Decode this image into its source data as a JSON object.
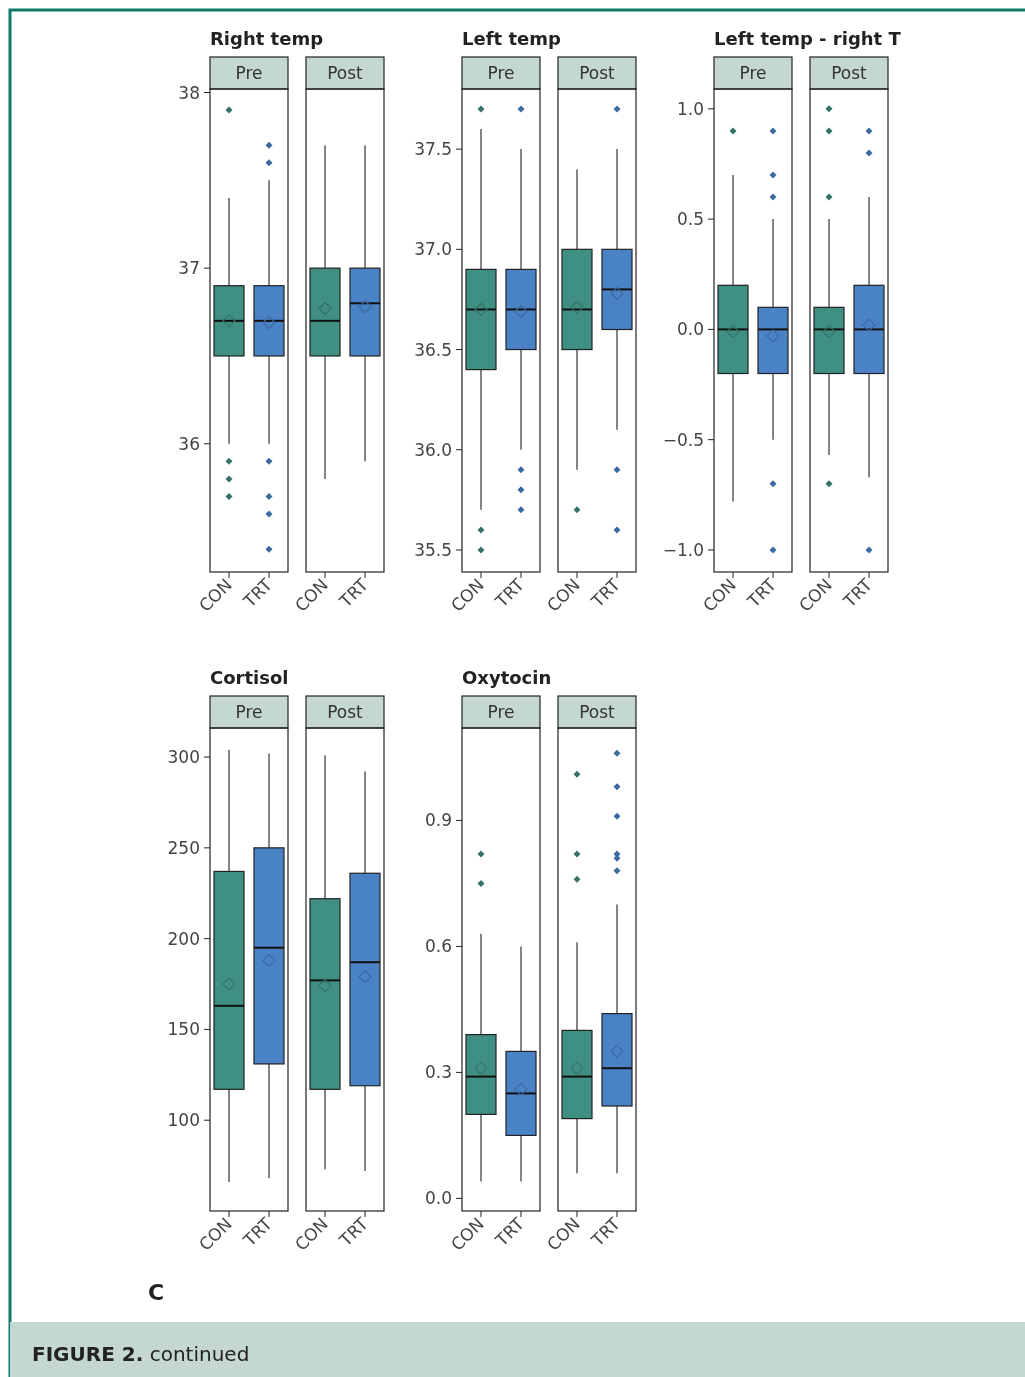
{
  "chart_data": [
    {
      "type": "box",
      "title": "Right temp",
      "subtitle": "Pre",
      "categories": [
        "CON",
        "TRT"
      ],
      "colors": [
        "#408f83",
        "#4a82c6"
      ],
      "ylim": [
        35.27,
        38.02
      ],
      "yticks": [
        36,
        37,
        38
      ],
      "marker": "diamond",
      "boxes": [
        {
          "low": 36.0,
          "q1": 36.5,
          "median": 36.7,
          "q3": 36.9,
          "high": 37.4,
          "mean": 36.7,
          "outliers": [
            37.9,
            35.9,
            35.8,
            35.7
          ]
        },
        {
          "low": 36.0,
          "q1": 36.5,
          "median": 36.7,
          "q3": 36.9,
          "high": 37.5,
          "mean": 36.69,
          "outliers": [
            37.7,
            37.6,
            35.9,
            35.7,
            35.6,
            35.4
          ]
        }
      ]
    },
    {
      "type": "box",
      "subtitle": "Post",
      "categories": [
        "CON",
        "TRT"
      ],
      "colors": [
        "#408f83",
        "#4a82c6"
      ],
      "ylim": [
        35.27,
        38.02
      ],
      "tick_labels": "x",
      "marker": "diamond",
      "boxes": [
        {
          "low": 35.8,
          "q1": 36.5,
          "median": 36.7,
          "q3": 37.0,
          "high": 37.7,
          "mean": 36.77
        },
        {
          "low": 35.9,
          "q1": 36.5,
          "median": 36.8,
          "q3": 37.0,
          "high": 37.7,
          "mean": 36.78
        }
      ]
    },
    {
      "type": "box",
      "title": "Left temp",
      "subtitle": "Pre",
      "categories": [
        "CON",
        "TRT"
      ],
      "colors": [
        "#408f83",
        "#4a82c6"
      ],
      "ylim": [
        35.39,
        37.8
      ],
      "yticks": [
        {
          "value": 35.5,
          "label": "35.5"
        },
        {
          "value": 36,
          "label": "36.0"
        },
        {
          "value": 36.5,
          "label": "36.5"
        },
        {
          "value": 37,
          "label": "37.0"
        },
        {
          "value": 37.5,
          "label": "37.5"
        }
      ],
      "marker": "diamond",
      "boxes": [
        {
          "low": 35.7,
          "q1": 36.4,
          "median": 36.7,
          "q3": 36.9,
          "high": 37.6,
          "mean": 36.7,
          "outliers": [
            37.7,
            35.6,
            35.5
          ]
        },
        {
          "low": 36.0,
          "q1": 36.5,
          "median": 36.7,
          "q3": 36.9,
          "high": 37.5,
          "mean": 36.69,
          "outliers": [
            37.7,
            35.9,
            35.8,
            35.7
          ]
        }
      ]
    },
    {
      "type": "box",
      "subtitle": "Post",
      "categories": [
        "CON",
        "TRT"
      ],
      "colors": [
        "#408f83",
        "#4a82c6"
      ],
      "ylim": [
        35.39,
        37.8
      ],
      "tick_labels": "x",
      "marker": "diamond",
      "boxes": [
        {
          "low": 35.9,
          "q1": 36.5,
          "median": 36.7,
          "q3": 37.0,
          "high": 37.4,
          "mean": 36.71,
          "outliers": [
            35.7
          ]
        },
        {
          "low": 36.1,
          "q1": 36.6,
          "median": 36.8,
          "q3": 37.0,
          "high": 37.5,
          "mean": 36.78,
          "outliers": [
            37.7,
            35.9,
            35.6
          ]
        }
      ]
    },
    {
      "type": "box",
      "title": "Left temp - right T",
      "subtitle": "Pre",
      "categories": [
        "CON",
        "TRT"
      ],
      "colors": [
        "#408f83",
        "#4a82c6"
      ],
      "ylim": [
        -1.1,
        1.09
      ],
      "yticks": [
        {
          "value": -1,
          "label": "−1.0"
        },
        {
          "value": -0.5,
          "label": "−0.5"
        },
        {
          "value": 0,
          "label": "0.0"
        },
        {
          "value": 0.5,
          "label": "0.5"
        },
        {
          "value": 1,
          "label": "1.0"
        }
      ],
      "marker": "diamond",
      "boxes": [
        {
          "low": -0.78,
          "q1": -0.2,
          "median": 0.0,
          "q3": 0.2,
          "high": 0.7,
          "mean": -0.01,
          "outliers": [
            0.9
          ]
        },
        {
          "low": -0.5,
          "q1": -0.2,
          "median": 0.0,
          "q3": 0.1,
          "high": 0.5,
          "mean": -0.03,
          "outliers": [
            0.9,
            0.7,
            0.6,
            -0.7,
            -1.0
          ]
        }
      ]
    },
    {
      "type": "box",
      "subtitle": "Post",
      "categories": [
        "CON",
        "TRT"
      ],
      "colors": [
        "#408f83",
        "#4a82c6"
      ],
      "ylim": [
        -1.1,
        1.09
      ],
      "tick_labels": "x",
      "marker": "diamond",
      "boxes": [
        {
          "low": -0.57,
          "q1": -0.2,
          "median": 0.0,
          "q3": 0.1,
          "high": 0.5,
          "mean": -0.01,
          "outliers": [
            1.0,
            0.9,
            0.6,
            -0.7
          ]
        },
        {
          "low": -0.67,
          "q1": -0.2,
          "median": 0.0,
          "q3": 0.2,
          "high": 0.6,
          "mean": 0.02,
          "outliers": [
            0.9,
            0.8,
            -1.0
          ]
        }
      ]
    },
    {
      "type": "box",
      "title": "Cortisol",
      "subtitle": "Pre",
      "categories": [
        "CON",
        "TRT"
      ],
      "colors": [
        "#408f83",
        "#4a82c6"
      ],
      "ylim": [
        50,
        316
      ],
      "yticks": [
        100,
        150,
        200,
        250,
        300
      ],
      "marker": "diamond",
      "boxes": [
        {
          "low": 66,
          "q1": 117,
          "median": 163,
          "q3": 237,
          "high": 304,
          "mean": 175
        },
        {
          "low": 68,
          "q1": 131,
          "median": 195,
          "q3": 250,
          "high": 302,
          "mean": 188
        }
      ]
    },
    {
      "type": "box",
      "subtitle": "Post",
      "categories": [
        "CON",
        "TRT"
      ],
      "colors": [
        "#408f83",
        "#4a82c6"
      ],
      "ylim": [
        50,
        316
      ],
      "tick_labels": "x",
      "marker": "diamond",
      "boxes": [
        {
          "low": 73,
          "q1": 117,
          "median": 177,
          "q3": 222,
          "high": 301,
          "mean": 174
        },
        {
          "low": 72,
          "q1": 119,
          "median": 187,
          "q3": 236,
          "high": 292,
          "mean": 179
        }
      ]
    },
    {
      "type": "box",
      "title": "Oxytocin",
      "subtitle": "Pre",
      "categories": [
        "CON",
        "TRT"
      ],
      "colors": [
        "#408f83",
        "#4a82c6"
      ],
      "ylim": [
        -0.03,
        1.12
      ],
      "yticks": [
        {
          "value": 0,
          "label": "0.0"
        },
        {
          "value": 0.3,
          "label": "0.3"
        },
        {
          "value": 0.6,
          "label": "0.6"
        },
        {
          "value": 0.9,
          "label": "0.9"
        }
      ],
      "marker": "diamond",
      "boxes": [
        {
          "low": 0.04,
          "q1": 0.2,
          "median": 0.29,
          "q3": 0.39,
          "high": 0.63,
          "mean": 0.31,
          "outliers": [
            0.82,
            0.75
          ]
        },
        {
          "low": 0.04,
          "q1": 0.15,
          "median": 0.25,
          "q3": 0.35,
          "high": 0.6,
          "mean": 0.26
        }
      ]
    },
    {
      "type": "box",
      "subtitle": "Post",
      "categories": [
        "CON",
        "TRT"
      ],
      "colors": [
        "#408f83",
        "#4a82c6"
      ],
      "ylim": [
        -0.03,
        1.12
      ],
      "tick_labels": "x",
      "marker": "diamond",
      "annotations": [
        "C",
        "FIGURE 2. continued"
      ],
      "boxes": [
        {
          "low": 0.06,
          "q1": 0.19,
          "median": 0.29,
          "q3": 0.4,
          "high": 0.61,
          "mean": 0.31,
          "outliers": [
            1.01,
            0.82,
            0.76
          ]
        },
        {
          "low": 0.06,
          "q1": 0.22,
          "median": 0.31,
          "q3": 0.44,
          "high": 0.7,
          "mean": 0.35,
          "outliers": [
            1.06,
            0.98,
            0.91,
            0.82,
            0.81,
            0.78
          ]
        }
      ]
    }
  ]
}
